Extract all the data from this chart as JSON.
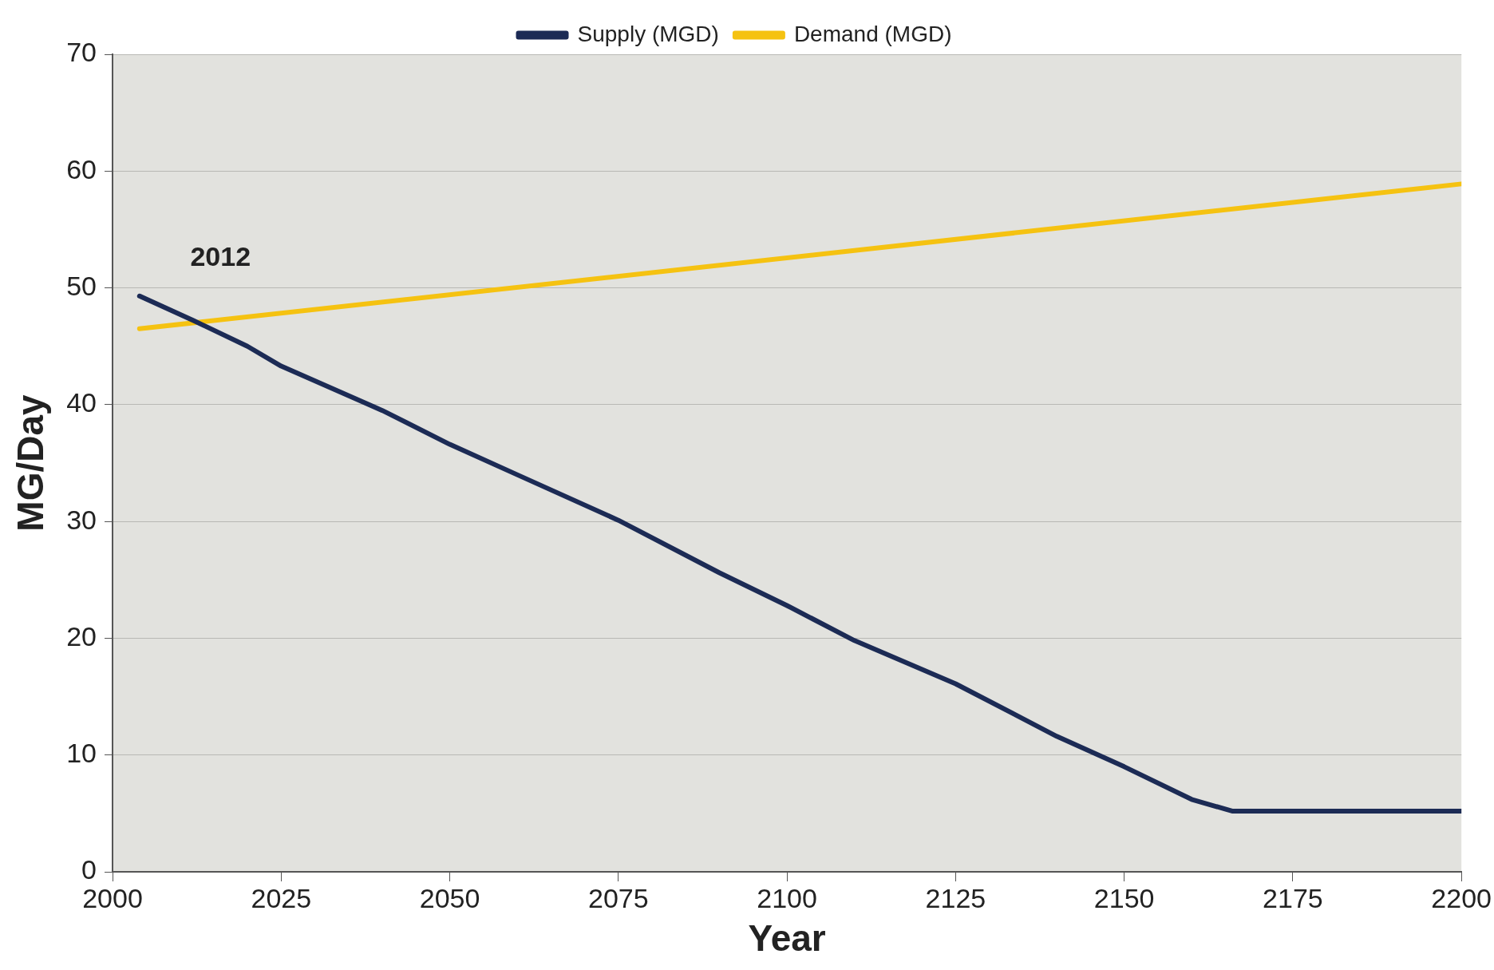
{
  "chart_data": {
    "type": "line",
    "xlabel": "Year",
    "ylabel": "MG/Day",
    "xlim": [
      2000,
      2200
    ],
    "xticks": [
      2000,
      2025,
      2050,
      2075,
      2100,
      2125,
      2150,
      2175,
      2200
    ],
    "ylim": [
      0,
      70
    ],
    "yticks": [
      0,
      10,
      20,
      30,
      40,
      50,
      60,
      70
    ],
    "series": [
      {
        "name": "Supply (MGD)",
        "color": "#1c2b55",
        "x": [
          2004,
          2012,
          2020,
          2025,
          2040,
          2050,
          2060,
          2075,
          2090,
          2100,
          2110,
          2125,
          2140,
          2150,
          2160,
          2166,
          2200
        ],
        "values": [
          49.3,
          47.2,
          45,
          43.3,
          39.5,
          36.6,
          34,
          30.1,
          25.6,
          22.8,
          19.8,
          16.1,
          11.6,
          9,
          6.2,
          5.2,
          5.2
        ]
      },
      {
        "name": "Demand (MGD)",
        "color": "#f5c211",
        "x": [
          2004,
          2200
        ],
        "values": [
          46.5,
          58.9
        ]
      }
    ],
    "annotations": [
      "2012"
    ],
    "grid": "y",
    "legend": "top",
    "marker": "none",
    "line_style": "solid"
  }
}
